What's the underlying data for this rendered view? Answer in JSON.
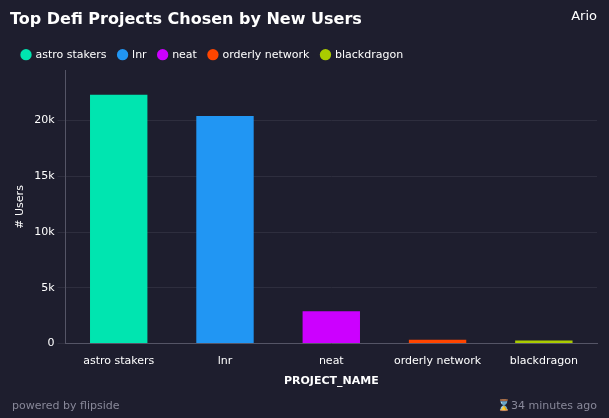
{
  "chart_data": {
    "type": "bar",
    "title": "Top Defi Projects Chosen by New Users",
    "xlabel": "PROJECT_NAME",
    "ylabel": "# Users",
    "categories": [
      "astro stakers",
      "lnr",
      "neat",
      "orderly network",
      "blackdragon"
    ],
    "values": [
      22300,
      20400,
      2900,
      350,
      280
    ],
    "colors": [
      "#00e5b0",
      "#2196f3",
      "#cc00ff",
      "#ff4500",
      "#aacc00"
    ],
    "ylim": [
      0,
      24500
    ],
    "yticks": [
      0,
      {
        "value": 5000,
        "label": "5k"
      },
      {
        "value": 10000,
        "label": "10k"
      },
      {
        "value": 15000,
        "label": "15k"
      },
      {
        "value": 20000,
        "label": "20k"
      }
    ],
    "grid": true,
    "legend": "top-left",
    "annotations": [
      "Ario",
      "powered by flipside",
      "⌛34 minutes ago"
    ]
  }
}
